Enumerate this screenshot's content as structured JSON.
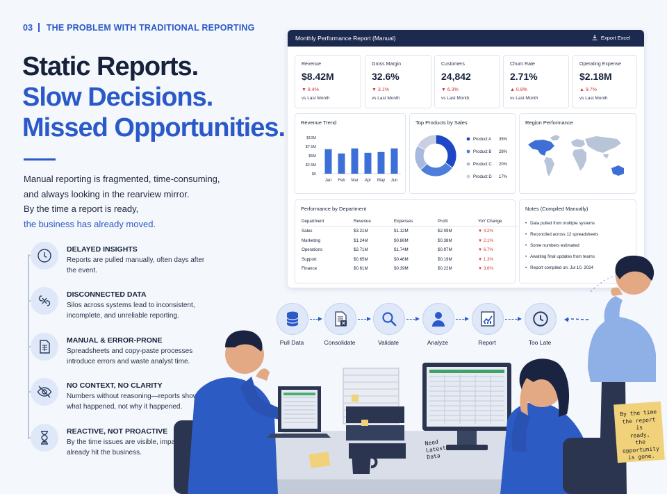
{
  "section": {
    "number": "03",
    "title": "THE PROBLEM WITH TRADITIONAL REPORTING"
  },
  "headline": {
    "line1": "Static Reports.",
    "line2": "Slow Decisions.",
    "line3": "Missed Opportunities."
  },
  "intro": {
    "line1": "Manual reporting is fragmented, time-consuming,",
    "line2": "and always looking in the rearview mirror.",
    "line3": "By the time a report is ready,",
    "line4": "the business has already moved."
  },
  "issues": [
    {
      "icon": "clock-icon",
      "title": "DELAYED INSIGHTS",
      "desc": "Reports are pulled manually, often days after the event."
    },
    {
      "icon": "broken-link-icon",
      "title": "DISCONNECTED DATA",
      "desc": "Silos across systems lead to inconsistent, incomplete, and unreliable reporting."
    },
    {
      "icon": "spreadsheet-icon",
      "title": "MANUAL & ERROR-PRONE",
      "desc": "Spreadsheets and copy-paste processes introduce errors and waste analyst time."
    },
    {
      "icon": "eye-off-icon",
      "title": "NO CONTEXT, NO CLARITY",
      "desc": "Numbers without reasoning—reports show what happened, not why it happened."
    },
    {
      "icon": "hourglass-icon",
      "title": "REACTIVE, NOT PROACTIVE",
      "desc": "By the time issues are visible, impact has already hit the business."
    }
  ],
  "dashboard": {
    "title": "Monthly Performance Report (Manual)",
    "export_label": "Export Excel",
    "kpis": [
      {
        "label": "Revenue",
        "value": "$8.42M",
        "change": "▼ 8.4%",
        "sub": "vs Last Month"
      },
      {
        "label": "Gross Margin",
        "value": "32.6%",
        "change": "▼ 3.1%",
        "sub": "vs Last Month"
      },
      {
        "label": "Customers",
        "value": "24,842",
        "change": "▼ 6.3%",
        "sub": "vs Last Month"
      },
      {
        "label": "Churn Rate",
        "value": "2.71%",
        "change": "▲ 0.8%",
        "sub": "vs Last Month"
      },
      {
        "label": "Operating Expense",
        "value": "$2.18M",
        "change": "▲ 9.7%",
        "sub": "vs Last Month"
      }
    ],
    "revenue_trend": {
      "title": "Revenue Trend"
    },
    "top_products": {
      "title": "Top Products by Sales",
      "items": [
        {
          "name": "Product A",
          "pct": "35%"
        },
        {
          "name": "Product B",
          "pct": "28%"
        },
        {
          "name": "Product C",
          "pct": "20%"
        },
        {
          "name": "Product D",
          "pct": "17%"
        }
      ]
    },
    "region": {
      "title": "Region Performance"
    },
    "department": {
      "title": "Performance by Department",
      "headers": [
        "Department",
        "Revenue",
        "Expenses",
        "Profit",
        "YoY Change"
      ],
      "rows": [
        [
          "Sales",
          "$3.21M",
          "$1.12M",
          "$2.09M",
          "▼ 4.2%"
        ],
        [
          "Marketing",
          "$1.24M",
          "$0.86M",
          "$0.38M",
          "▼ 2.1%"
        ],
        [
          "Operations",
          "$2.71M",
          "$1.74M",
          "$0.97M",
          "▼ 6.7%"
        ],
        [
          "Support",
          "$0.65M",
          "$0.46M",
          "$0.19M",
          "▼ 1.3%"
        ],
        [
          "Finance",
          "$0.61M",
          "$0.39M",
          "$0.22M",
          "▼ 3.6%"
        ]
      ]
    },
    "notes": {
      "title": "Notes (Compiled Manually)",
      "items": [
        "Data pulled from multiple systems",
        "Reconciled across 12 spreadsheets",
        "Some numbers estimated",
        "Awaiting final updates from teams",
        "Report compiled on: Jul 10, 2024"
      ]
    }
  },
  "chart_data": [
    {
      "type": "bar",
      "title": "Revenue Trend",
      "categories": [
        "Jan",
        "Feb",
        "Mar",
        "Apr",
        "May",
        "Jun"
      ],
      "y_ticks": [
        "$10M",
        "$7.5M",
        "$5M",
        "$2.5M",
        "$0"
      ],
      "values": [
        6.8,
        5.6,
        7.0,
        5.8,
        6.0,
        7.0
      ],
      "ylim": [
        0,
        10
      ]
    },
    {
      "type": "pie",
      "title": "Top Products by Sales",
      "categories": [
        "Product A",
        "Product B",
        "Product C",
        "Product D"
      ],
      "values": [
        35,
        28,
        20,
        17
      ],
      "colors": [
        "#1e47c7",
        "#4d7ed9",
        "#a7b9dc",
        "#c7cfe0"
      ]
    }
  ],
  "flow": [
    {
      "label": "Pull Data",
      "icon": "database-icon"
    },
    {
      "label": "Consolidate",
      "icon": "document-excel-icon"
    },
    {
      "label": "Validate",
      "icon": "magnifier-icon"
    },
    {
      "label": "Analyze",
      "icon": "person-icon"
    },
    {
      "label": "Report",
      "icon": "line-chart-icon"
    },
    {
      "label": "Too Late",
      "icon": "clock-icon"
    }
  ],
  "sticky_notes": {
    "desk": [
      "Need",
      "Latest",
      "Data"
    ],
    "right": [
      "By the time",
      "the report is",
      "ready,",
      "the",
      "opportunity",
      "is gone."
    ]
  },
  "colors": {
    "accent": "#2a59c8",
    "navy": "#1b2a4e",
    "negative": "#d63232",
    "background": "#f4f7fc"
  }
}
